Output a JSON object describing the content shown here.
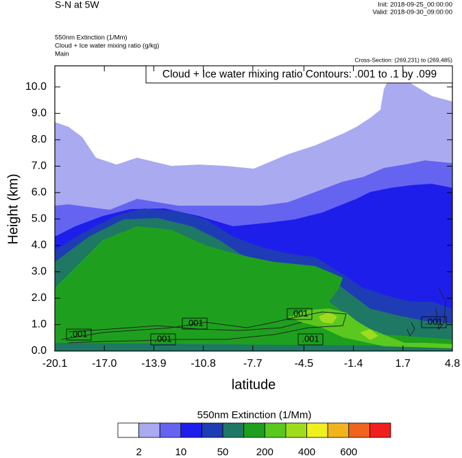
{
  "chart_data": {
    "type": "contour",
    "title": "S-N at 5W",
    "init": "Init: 2018-09-25_00:00:00",
    "valid": "Valid: 2018-09-30_09:00:00",
    "field_labels": [
      "550nm Extinction   (1/Mm)",
      "Cloud + Ice water mixing ratio   (g/kg)",
      "Main"
    ],
    "cross_section": "Cross-Section: (269,231) to (269,485)",
    "contour_info": "Cloud + Ice water mixing ratio Contours: .001 to .1 by .099",
    "contour_labels": [
      ".001",
      ".001",
      ".001",
      ".001",
      ".001",
      ".001"
    ],
    "x_label": "latitude",
    "y_label": "Height (km)",
    "xlim": [
      -20.1,
      4.8
    ],
    "xticks": [
      -20.1,
      {
        "value": -17,
        "label": "-17.0"
      },
      -13.9,
      -10.8,
      -7.7,
      -4.5,
      -1.4,
      1.7,
      4.8
    ],
    "ylim": [
      0,
      10.8
    ],
    "yticks": [
      {
        "value": 0,
        "label": "0.0"
      },
      {
        "value": 1,
        "label": "1.0"
      },
      {
        "value": 2,
        "label": "2.0"
      },
      {
        "value": 3,
        "label": "3.0"
      },
      {
        "value": 4,
        "label": "4.0"
      },
      {
        "value": 5,
        "label": "5.0"
      },
      {
        "value": 6,
        "label": "6.0"
      },
      {
        "value": 7,
        "label": "7.0"
      },
      {
        "value": 8,
        "label": "8.0"
      },
      {
        "value": 9,
        "label": "9.0"
      },
      {
        "value": 10,
        "label": "10.0"
      }
    ],
    "colorbar": {
      "title": "550nm Extinction  (1/Mm)",
      "colors": [
        "#ffffff",
        "#aaaaf0",
        "#6464f0",
        "#1e1eeb",
        "#1e3cb4",
        "#1e7864",
        "#1ea01e",
        "#5ac81e",
        "#a0dc1e",
        "#f0f01e",
        "#f0b41e",
        "#f0641e",
        "#f01e1e"
      ],
      "ticks": [
        2,
        10,
        50,
        200,
        400,
        600
      ]
    }
  }
}
